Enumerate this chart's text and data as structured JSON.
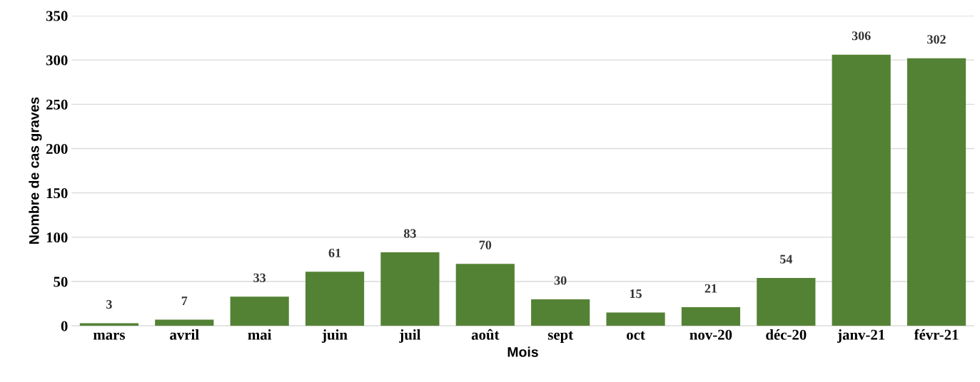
{
  "chart_data": {
    "type": "bar",
    "xlabel": "Mois",
    "ylabel": "Nombre de cas graves",
    "categories": [
      "mars",
      "avril",
      "mai",
      "juin",
      "juil",
      "août",
      "sept",
      "oct",
      "nov-20",
      "déc-20",
      "janv-21",
      "févr-21"
    ],
    "values": [
      3,
      7,
      33,
      61,
      83,
      70,
      30,
      15,
      21,
      54,
      306,
      302
    ],
    "color": "#548235",
    "ylim": [
      0,
      350
    ],
    "yticks": [
      0,
      50,
      100,
      150,
      200,
      250,
      300,
      350
    ],
    "grid": "y",
    "data_labels": true,
    "legend": false
  }
}
